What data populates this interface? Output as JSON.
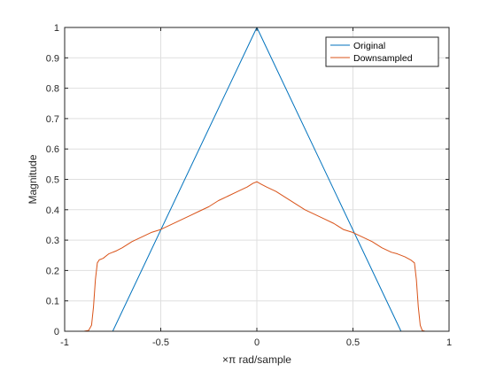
{
  "chart_data": {
    "type": "line",
    "title": "",
    "xlabel": "×π  rad/sample",
    "ylabel": "Magnitude",
    "xlim": [
      -1,
      1
    ],
    "ylim": [
      0,
      1
    ],
    "xticks": [
      -1,
      -0.5,
      0,
      0.5,
      1
    ],
    "xtick_labels": [
      "-1",
      "-0.5",
      "0",
      "0.5",
      "1"
    ],
    "yticks": [
      0,
      0.1,
      0.2,
      0.3,
      0.4,
      0.5,
      0.6,
      0.7,
      0.8,
      0.9,
      1
    ],
    "ytick_labels": [
      "0",
      "0.1",
      "0.2",
      "0.3",
      "0.4",
      "0.5",
      "0.6",
      "0.7",
      "0.8",
      "0.9",
      "1"
    ],
    "grid": true,
    "legend_position": "top-right",
    "series": [
      {
        "name": "Original",
        "color": "#0072bd",
        "x": [
          -1,
          -0.75,
          0,
          0.75,
          1
        ],
        "y": [
          0,
          0,
          1,
          0,
          0
        ]
      },
      {
        "name": "Downsampled",
        "color": "#d95319",
        "x": [
          -1,
          -0.9,
          -0.875,
          -0.86,
          -0.85,
          -0.84,
          -0.83,
          -0.82,
          -0.8,
          -0.77,
          -0.73,
          -0.7,
          -0.65,
          -0.6,
          -0.55,
          -0.5,
          -0.45,
          -0.4,
          -0.35,
          -0.3,
          -0.25,
          -0.2,
          -0.15,
          -0.1,
          -0.05,
          -0.02,
          0,
          0.02,
          0.05,
          0.1,
          0.15,
          0.2,
          0.25,
          0.3,
          0.35,
          0.4,
          0.45,
          0.5,
          0.55,
          0.6,
          0.65,
          0.7,
          0.73,
          0.77,
          0.8,
          0.82,
          0.83,
          0.84,
          0.85,
          0.86,
          0.875,
          0.9,
          1
        ],
        "y": [
          0,
          0,
          0.003,
          0.02,
          0.08,
          0.17,
          0.225,
          0.235,
          0.24,
          0.255,
          0.265,
          0.275,
          0.295,
          0.31,
          0.325,
          0.335,
          0.35,
          0.365,
          0.38,
          0.395,
          0.41,
          0.43,
          0.445,
          0.46,
          0.475,
          0.487,
          0.492,
          0.485,
          0.475,
          0.46,
          0.44,
          0.42,
          0.4,
          0.385,
          0.37,
          0.355,
          0.335,
          0.325,
          0.31,
          0.295,
          0.275,
          0.26,
          0.255,
          0.245,
          0.235,
          0.225,
          0.17,
          0.08,
          0.02,
          0.003,
          0,
          0,
          0
        ]
      }
    ]
  }
}
